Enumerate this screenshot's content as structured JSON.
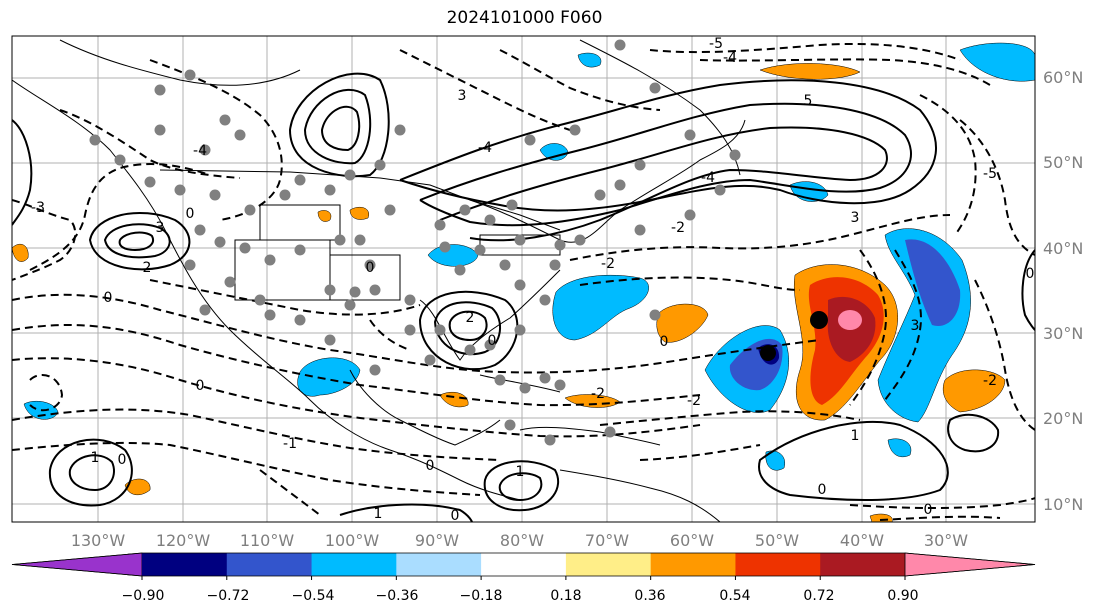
{
  "title": "2024101000 F060",
  "map": {
    "lat_labels": [
      "60°N",
      "50°N",
      "40°N",
      "30°N",
      "20°N",
      "10°N"
    ],
    "lon_labels": [
      "130°W",
      "120°W",
      "110°W",
      "100°W",
      "90°W",
      "80°W",
      "70°W",
      "60°W",
      "50°W",
      "40°W",
      "30°W"
    ]
  },
  "colorbar": {
    "boundaries": [
      "−0.90",
      "−0.72",
      "−0.54",
      "−0.36",
      "−0.18",
      "0.18",
      "0.36",
      "0.54",
      "0.72",
      "0.90"
    ],
    "colors": [
      "#9933cc",
      "#000080",
      "#3355cc",
      "#00bbff",
      "#aaddff",
      "#ffffff",
      "#ffee88",
      "#ff9900",
      "#ee3300",
      "#aa1a22",
      "#ff88aa"
    ]
  },
  "contour_labels": [
    {
      "text": "4"
    },
    {
      "text": "3"
    },
    {
      "text": "2"
    },
    {
      "text": "1"
    },
    {
      "text": "0"
    },
    {
      "text": "-1"
    },
    {
      "text": "-2"
    },
    {
      "text": "-3"
    },
    {
      "text": "-4"
    },
    {
      "text": "-5"
    },
    {
      "text": "5"
    }
  ]
}
